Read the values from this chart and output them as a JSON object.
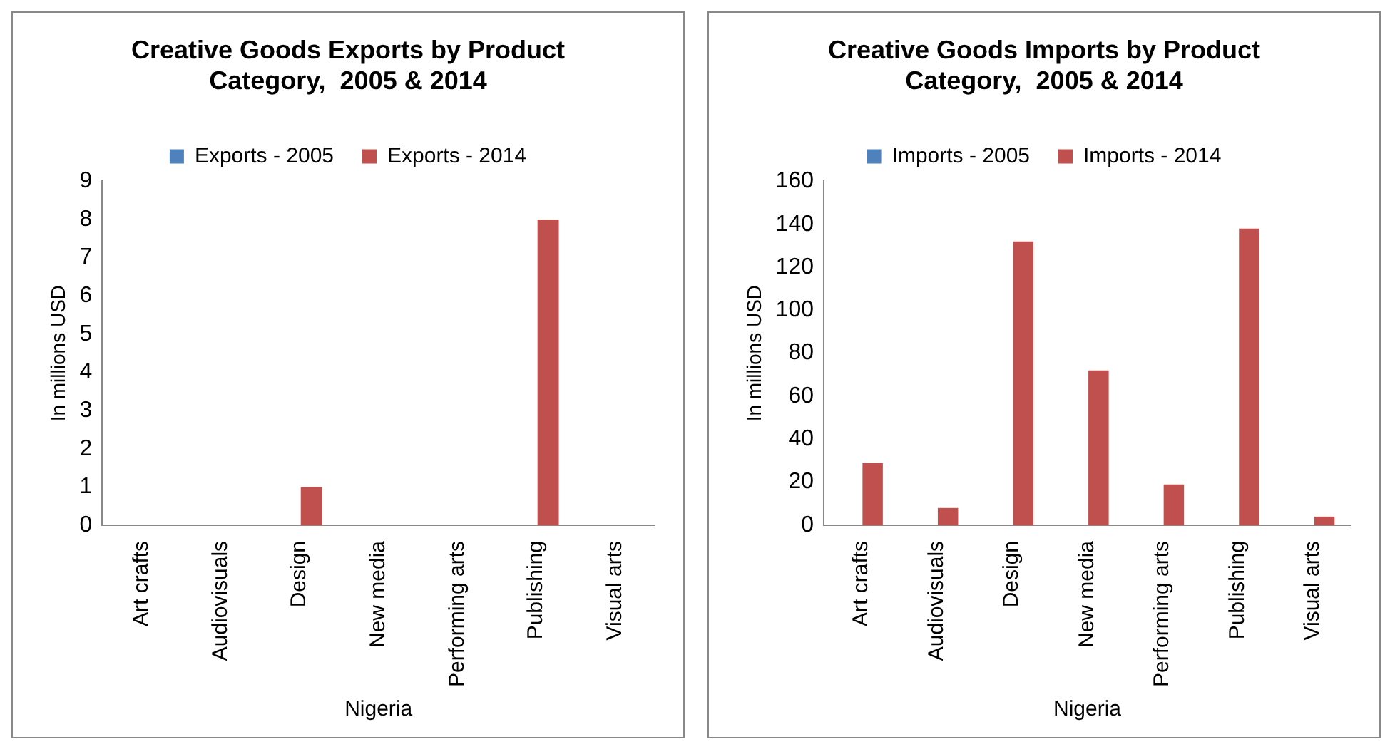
{
  "chart_data": [
    {
      "type": "bar",
      "title": "Creative Goods Exports by Product Category,  2005 & 2014",
      "xlabel": "Nigeria",
      "ylabel": "In millions USD",
      "categories": [
        "Art crafts",
        "Audiovisuals",
        "Design",
        "New media",
        "Performing arts",
        "Publishing",
        "Visual arts"
      ],
      "series": [
        {
          "name": "Exports - 2005",
          "color": "#4f81bd",
          "values": [
            0,
            0,
            0,
            0,
            0,
            0,
            0
          ]
        },
        {
          "name": "Exports - 2014",
          "color": "#c0504d",
          "values": [
            0,
            0,
            1,
            0,
            0,
            8,
            0
          ]
        }
      ],
      "ylim": [
        0,
        9
      ],
      "yticks": [
        0,
        1,
        2,
        3,
        4,
        5,
        6,
        7,
        8,
        9
      ],
      "legend": "top",
      "grid": false
    },
    {
      "type": "bar",
      "title": "Creative Goods Imports by Product Category,  2005 & 2014",
      "xlabel": "Nigeria",
      "ylabel": "In millions USD",
      "categories": [
        "Art crafts",
        "Audiovisuals",
        "Design",
        "New media",
        "Performing arts",
        "Publishing",
        "Visual arts"
      ],
      "series": [
        {
          "name": "Imports - 2005",
          "color": "#4f81bd",
          "values": [
            0,
            0,
            0,
            0,
            0,
            0,
            0
          ]
        },
        {
          "name": "Imports - 2014",
          "color": "#c0504d",
          "values": [
            29,
            8,
            132,
            72,
            19,
            138,
            4
          ]
        }
      ],
      "ylim": [
        0,
        160
      ],
      "yticks": [
        0,
        20,
        40,
        60,
        80,
        100,
        120,
        140,
        160
      ],
      "legend": "top",
      "grid": false
    }
  ]
}
